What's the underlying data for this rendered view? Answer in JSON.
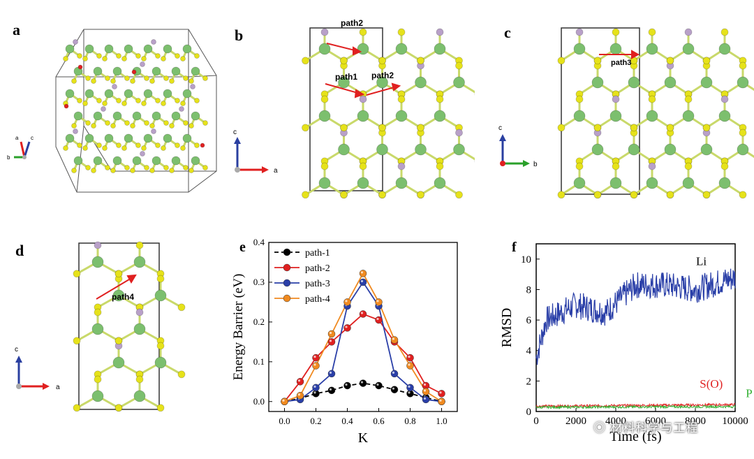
{
  "panels": {
    "a": {
      "label": "a",
      "axes": {
        "a": "a",
        "b": "b",
        "c": "c"
      }
    },
    "b": {
      "label": "b",
      "paths": [
        "path2",
        "path1",
        "path2"
      ],
      "axes": {
        "up": "c",
        "right": "a"
      }
    },
    "c": {
      "label": "c",
      "paths": [
        "path3"
      ],
      "axes": {
        "up": "c",
        "right": "b"
      }
    },
    "d": {
      "label": "d",
      "paths": [
        "path4"
      ],
      "axes": {
        "up": "c",
        "right": "a"
      }
    }
  },
  "colors": {
    "Li": "#7cbf6e",
    "S": "#e6e21a",
    "P": "#b8a0c8",
    "O": "#e02020",
    "arrow": "#e02020",
    "axis_red": "#e02020",
    "axis_blue": "#2a3fa0",
    "axis_green": "#2aa02a"
  },
  "chart_data": [
    {
      "panel": "e",
      "type": "line",
      "xlabel": "K",
      "ylabel": "Energy Barrier (eV)",
      "xlim": [
        -0.1,
        1.1
      ],
      "ylim": [
        -0.025,
        0.4
      ],
      "xticks": [
        "0.0",
        "0.2",
        "0.4",
        "0.6",
        "0.8",
        "1.0"
      ],
      "yticks": [
        "0.0",
        "0.1",
        "0.2",
        "0.3",
        "0.4"
      ],
      "legend_position": "top-left",
      "x": [
        0.0,
        0.1,
        0.2,
        0.3,
        0.4,
        0.5,
        0.6,
        0.7,
        0.8,
        0.9,
        1.0
      ],
      "series": [
        {
          "name": "path-1",
          "color": "#000000",
          "style": "dashed",
          "values": [
            0.0,
            0.008,
            0.02,
            0.028,
            0.04,
            0.046,
            0.04,
            0.03,
            0.02,
            0.01,
            0.0
          ]
        },
        {
          "name": "path-2",
          "color": "#e02020",
          "style": "solid",
          "values": [
            0.0,
            0.05,
            0.11,
            0.15,
            0.185,
            0.22,
            0.205,
            0.15,
            0.11,
            0.04,
            0.02
          ]
        },
        {
          "name": "path-3",
          "color": "#2a3fa8",
          "style": "solid",
          "values": [
            0.0,
            0.005,
            0.035,
            0.07,
            0.24,
            0.3,
            0.24,
            0.07,
            0.035,
            0.005,
            0.0
          ]
        },
        {
          "name": "path-4",
          "color": "#f08a20",
          "style": "solid",
          "values": [
            0.0,
            0.015,
            0.09,
            0.17,
            0.25,
            0.322,
            0.25,
            0.155,
            0.09,
            0.025,
            0.0
          ]
        }
      ]
    },
    {
      "panel": "f",
      "type": "line",
      "xlabel": "Time (fs)",
      "ylabel": "RMSD",
      "xlim": [
        0,
        10000
      ],
      "ylim": [
        0,
        11
      ],
      "xticks": [
        "0",
        "2000",
        "4000",
        "6000",
        "8000",
        "10000"
      ],
      "yticks": [
        "0",
        "2",
        "4",
        "6",
        "8",
        "10"
      ],
      "series": [
        {
          "name": "Li",
          "color": "#2a3fa8",
          "trend": [
            [
              0,
              3.5
            ],
            [
              500,
              6.0
            ],
            [
              2000,
              7.0
            ],
            [
              3500,
              6.5
            ],
            [
              5000,
              8.3
            ],
            [
              6500,
              8.3
            ],
            [
              8000,
              8.0
            ],
            [
              10000,
              8.8
            ]
          ]
        },
        {
          "name": "S(O)",
          "color": "#e02020",
          "trend": [
            [
              0,
              0.35
            ],
            [
              10000,
              0.45
            ]
          ]
        },
        {
          "name": "P",
          "color": "#33b033",
          "trend": [
            [
              0,
              0.28
            ],
            [
              10000,
              0.32
            ]
          ]
        }
      ]
    }
  ],
  "watermark": "材料科学与工程"
}
